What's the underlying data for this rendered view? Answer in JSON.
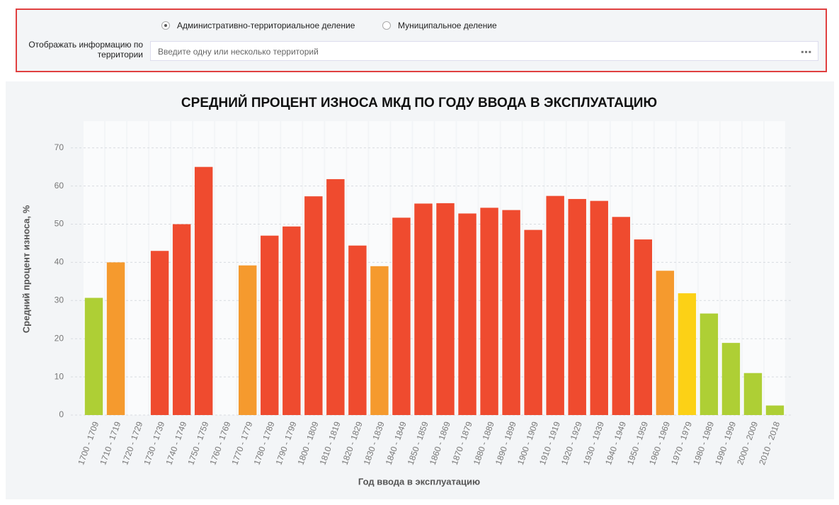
{
  "filter": {
    "radio_options": [
      "Административно-территориальное деление",
      "Муниципальное деление"
    ],
    "selected": 0,
    "label_lines": [
      "Отображать информацию по",
      "территории"
    ],
    "placeholder": "Введите одну или несколько территорий"
  },
  "chart_data": {
    "type": "bar",
    "title": "СРЕДНИЙ ПРОЦЕНТ ИЗНОСА МКД ПО ГОДУ ВВОДА В ЭКСПЛУАТАЦИЮ",
    "x_label": "Год ввода в эксплуатацию",
    "y_label": "Средний процент износа, %",
    "categories": [
      "1700 - 1709",
      "1710 - 1719",
      "1720 - 1729",
      "1730 - 1739",
      "1740 - 1749",
      "1750 - 1759",
      "1760 - 1769",
      "1770 - 1779",
      "1780 - 1789",
      "1790 - 1799",
      "1800 - 1809",
      "1810 - 1819",
      "1820 - 1829",
      "1830 - 1839",
      "1840 - 1849",
      "1850 - 1859",
      "1860 - 1869",
      "1870 - 1879",
      "1880 - 1889",
      "1890 - 1899",
      "1900 - 1909",
      "1910 - 1919",
      "1920 - 1929",
      "1930 - 1939",
      "1940 - 1949",
      "1950 - 1959",
      "1960 - 1969",
      "1970 - 1979",
      "1980 - 1989",
      "1990 - 1999",
      "2000 - 2009",
      "2010 - 2018"
    ],
    "values": [
      30.7,
      40,
      null,
      43,
      50,
      65,
      null,
      39.2,
      47,
      49.4,
      57.3,
      61.8,
      44.4,
      39,
      51.7,
      55.4,
      55.5,
      52.8,
      54.3,
      53.7,
      48.5,
      57.4,
      56.6,
      56.1,
      51.9,
      46,
      37.8,
      31.9,
      26.6,
      18.9,
      11,
      2.5
    ],
    "colors": [
      "#aecf35",
      "#f59a2e",
      null,
      "#ef4b2f",
      "#ef4b2f",
      "#ef4b2f",
      null,
      "#f59a2e",
      "#ef4b2f",
      "#ef4b2f",
      "#ef4b2f",
      "#ef4b2f",
      "#ef4b2f",
      "#f59a2e",
      "#ef4b2f",
      "#ef4b2f",
      "#ef4b2f",
      "#ef4b2f",
      "#ef4b2f",
      "#ef4b2f",
      "#ef4b2f",
      "#ef4b2f",
      "#ef4b2f",
      "#ef4b2f",
      "#ef4b2f",
      "#ef4b2f",
      "#f59a2e",
      "#fcd116",
      "#aecf35",
      "#aecf35",
      "#aecf35",
      "#aecf35"
    ],
    "ylim": [
      0,
      77
    ],
    "yticks": [
      0,
      10,
      20,
      30,
      40,
      50,
      60,
      70
    ],
    "grid": true
  }
}
